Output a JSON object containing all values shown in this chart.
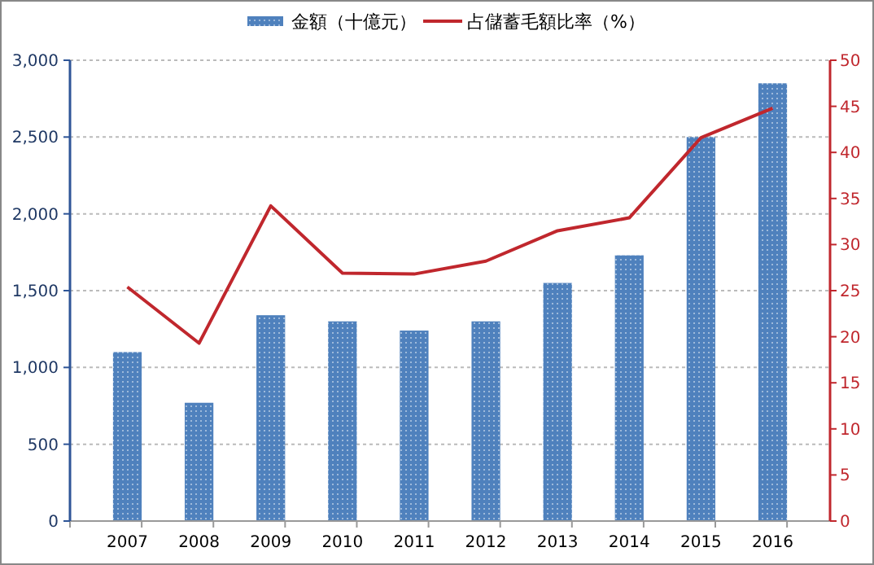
{
  "chart_data": {
    "type": "bar",
    "categories": [
      "2007",
      "2008",
      "2009",
      "2010",
      "2011",
      "2012",
      "2013",
      "2014",
      "2015",
      "2016"
    ],
    "series": [
      {
        "name": "金額（十億元）",
        "color": "#4f81bd",
        "values": [
          1100,
          770,
          1340,
          1300,
          1240,
          1300,
          1550,
          1730,
          2500,
          2850
        ]
      },
      {
        "name": "占儲蓄毛額比率（%）",
        "type": "line",
        "axis": "y2",
        "color": "#c0272d",
        "values": [
          25.4,
          19.3,
          34.2,
          26.9,
          26.8,
          28.2,
          31.5,
          32.9,
          41.6,
          44.8
        ]
      }
    ],
    "ylim": [
      0,
      3000
    ],
    "yticks": [
      0,
      500,
      {
        "value": 1000,
        "label": "1,000"
      },
      {
        "value": 1500,
        "label": "1,500"
      },
      {
        "value": 2000,
        "label": "2,000"
      },
      {
        "value": 2500,
        "label": "2,500"
      },
      {
        "value": 3000,
        "label": "3,000"
      }
    ],
    "y2lim": [
      0,
      50
    ],
    "y2ticks": [
      0,
      5,
      10,
      15,
      20,
      25,
      30,
      35,
      40,
      45,
      50
    ],
    "grid": "y",
    "legend": "top"
  }
}
